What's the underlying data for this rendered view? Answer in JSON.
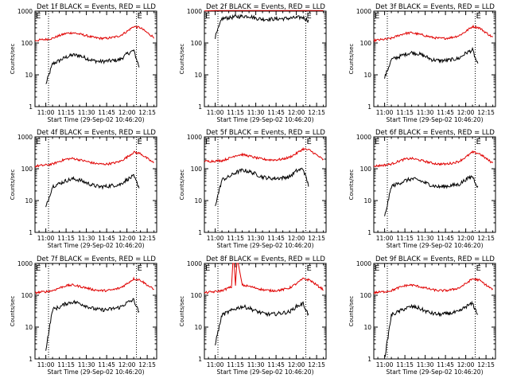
{
  "chart_data": [
    {
      "type": "line",
      "title": "Det 1f BLACK = Events, RED = LLD",
      "ylabel": "Counts/sec",
      "xlabel": "Start Time (29-Sep-02 10:46:20)",
      "x_ticks": [
        "11:00",
        "11:15",
        "11:30",
        "11:45",
        "12:00",
        "12:15"
      ],
      "y_ticks": [
        "1",
        "10",
        "100",
        "1000"
      ],
      "ylim": [
        1,
        1000
      ],
      "y_scale": "log",
      "xlim": [
        "10:52",
        "12:22"
      ],
      "vlines": [
        "11:02",
        "12:07"
      ],
      "marker": "E",
      "series": [
        {
          "name": "Events",
          "color": "#000000",
          "x": [
            "11:00",
            "11:05",
            "11:10",
            "11:15",
            "11:20",
            "11:25",
            "11:30",
            "11:35",
            "11:40",
            "11:45",
            "11:50",
            "11:55",
            "12:00",
            "12:05",
            "12:09"
          ],
          "values": [
            5,
            22,
            28,
            36,
            42,
            40,
            33,
            28,
            26,
            27,
            28,
            30,
            45,
            58,
            18
          ]
        },
        {
          "name": "LLD",
          "color": "#e00000",
          "x": [
            "10:52",
            "11:00",
            "11:05",
            "11:10",
            "11:15",
            "11:20",
            "11:25",
            "11:30",
            "11:35",
            "11:40",
            "11:45",
            "11:50",
            "11:55",
            "12:00",
            "12:05",
            "12:10",
            "12:15",
            "12:20"
          ],
          "values": [
            120,
            130,
            140,
            170,
            200,
            210,
            190,
            170,
            150,
            140,
            140,
            150,
            170,
            230,
            330,
            300,
            210,
            150
          ]
        }
      ]
    },
    {
      "type": "line",
      "title": "Det 2f BLACK = Events, RED = LLD",
      "ylabel": "Counts/sec",
      "xlabel": "Start Time (29-Sep-02 10:46:20)",
      "x_ticks": [
        "11:00",
        "11:15",
        "11:30",
        "11:45",
        "12:00",
        "12:15"
      ],
      "y_ticks": [
        "1",
        "10",
        "100",
        "1000"
      ],
      "ylim": [
        1,
        1000
      ],
      "y_scale": "log",
      "xlim": [
        "10:52",
        "12:22"
      ],
      "vlines": [
        "11:02",
        "12:07"
      ],
      "marker": "E",
      "series": [
        {
          "name": "Events",
          "color": "#000000",
          "x": [
            "11:00",
            "11:05",
            "11:10",
            "11:15",
            "11:20",
            "11:25",
            "11:30",
            "11:35",
            "11:40",
            "11:45",
            "11:50",
            "11:55",
            "12:00",
            "12:05",
            "12:09"
          ],
          "values": [
            150,
            580,
            620,
            660,
            690,
            700,
            600,
            560,
            560,
            570,
            580,
            600,
            620,
            640,
            500
          ]
        },
        {
          "name": "LLD",
          "color": "#e00000",
          "x": [
            "10:52",
            "11:00",
            "11:10",
            "11:20",
            "11:30",
            "11:40",
            "11:50",
            "12:00",
            "12:05",
            "12:10",
            "12:15",
            "12:20"
          ],
          "values": [
            1020,
            1040,
            1060,
            1080,
            1090,
            1080,
            1100,
            1150,
            1250,
            1200,
            1100,
            1050
          ]
        }
      ]
    },
    {
      "type": "line",
      "title": "Det 3f BLACK = Events, RED = LLD",
      "ylabel": "Counts/sec",
      "xlabel": "Start Time (29-Sep-02 10:46:20)",
      "x_ticks": [
        "11:00",
        "11:15",
        "11:30",
        "11:45",
        "12:00",
        "12:15"
      ],
      "y_ticks": [
        "1",
        "10",
        "100",
        "1000"
      ],
      "ylim": [
        1,
        1000
      ],
      "y_scale": "log",
      "xlim": [
        "10:52",
        "12:22"
      ],
      "vlines": [
        "11:02",
        "12:07"
      ],
      "marker": "E",
      "series": [
        {
          "name": "Events",
          "color": "#000000",
          "x": [
            "11:00",
            "11:05",
            "11:10",
            "11:15",
            "11:20",
            "11:25",
            "11:30",
            "11:35",
            "11:40",
            "11:45",
            "11:50",
            "11:55",
            "12:00",
            "12:05",
            "12:09"
          ],
          "values": [
            8,
            30,
            36,
            44,
            50,
            46,
            38,
            30,
            28,
            28,
            30,
            33,
            48,
            60,
            20
          ]
        },
        {
          "name": "LLD",
          "color": "#e00000",
          "x": [
            "10:52",
            "11:00",
            "11:05",
            "11:10",
            "11:15",
            "11:20",
            "11:25",
            "11:30",
            "11:35",
            "11:40",
            "11:45",
            "11:50",
            "11:55",
            "12:00",
            "12:05",
            "12:10",
            "12:15",
            "12:20"
          ],
          "values": [
            120,
            130,
            140,
            170,
            200,
            210,
            190,
            170,
            150,
            140,
            140,
            150,
            170,
            230,
            330,
            300,
            210,
            150
          ]
        }
      ]
    },
    {
      "type": "line",
      "title": "Det 4f BLACK = Events, RED = LLD",
      "ylabel": "Counts/sec",
      "xlabel": "Start Time (29-Sep-02 10:46:20)",
      "x_ticks": [
        "11:00",
        "11:15",
        "11:30",
        "11:45",
        "12:00",
        "12:15"
      ],
      "y_ticks": [
        "1",
        "10",
        "100",
        "1000"
      ],
      "ylim": [
        1,
        1000
      ],
      "y_scale": "log",
      "xlim": [
        "10:52",
        "12:22"
      ],
      "vlines": [
        "11:02",
        "12:07"
      ],
      "marker": "E",
      "series": [
        {
          "name": "Events",
          "color": "#000000",
          "x": [
            "11:00",
            "11:05",
            "11:10",
            "11:15",
            "11:20",
            "11:25",
            "11:30",
            "11:35",
            "11:40",
            "11:45",
            "11:50",
            "11:55",
            "12:00",
            "12:05",
            "12:09"
          ],
          "values": [
            6,
            28,
            34,
            42,
            48,
            44,
            36,
            30,
            27,
            28,
            30,
            32,
            46,
            58,
            26
          ]
        },
        {
          "name": "LLD",
          "color": "#e00000",
          "x": [
            "10:52",
            "11:00",
            "11:05",
            "11:10",
            "11:15",
            "11:20",
            "11:25",
            "11:30",
            "11:35",
            "11:40",
            "11:45",
            "11:50",
            "11:55",
            "12:00",
            "12:05",
            "12:10",
            "12:15",
            "12:20"
          ],
          "values": [
            120,
            130,
            140,
            170,
            200,
            210,
            190,
            170,
            150,
            140,
            140,
            150,
            170,
            230,
            330,
            300,
            210,
            150
          ]
        }
      ]
    },
    {
      "type": "line",
      "title": "Det 5f BLACK = Events, RED = LLD",
      "ylabel": "Counts/sec",
      "xlabel": "Start Time (29-Sep-02 10:46:20)",
      "x_ticks": [
        "11:00",
        "11:15",
        "11:30",
        "11:45",
        "12:00",
        "12:15"
      ],
      "y_ticks": [
        "1",
        "10",
        "100",
        "1000"
      ],
      "ylim": [
        1,
        1000
      ],
      "y_scale": "log",
      "xlim": [
        "10:52",
        "12:22"
      ],
      "vlines": [
        "11:02",
        "12:07"
      ],
      "marker": "E",
      "series": [
        {
          "name": "Events",
          "color": "#000000",
          "x": [
            "11:00",
            "11:05",
            "11:10",
            "11:15",
            "11:20",
            "11:25",
            "11:30",
            "11:35",
            "11:40",
            "11:45",
            "11:50",
            "11:55",
            "12:00",
            "12:05",
            "12:09"
          ],
          "values": [
            7,
            45,
            55,
            75,
            90,
            82,
            68,
            55,
            50,
            50,
            52,
            56,
            85,
            100,
            30
          ]
        },
        {
          "name": "LLD",
          "color": "#e00000",
          "x": [
            "10:52",
            "11:00",
            "11:05",
            "11:10",
            "11:15",
            "11:20",
            "11:25",
            "11:30",
            "11:35",
            "11:40",
            "11:45",
            "11:50",
            "11:55",
            "12:00",
            "12:05",
            "12:10",
            "12:15",
            "12:20"
          ],
          "values": [
            170,
            175,
            180,
            210,
            260,
            280,
            250,
            220,
            200,
            190,
            190,
            200,
            230,
            300,
            420,
            380,
            270,
            190
          ]
        }
      ]
    },
    {
      "type": "line",
      "title": "Det 6f BLACK = Events, RED = LLD",
      "ylabel": "Counts/sec",
      "xlabel": "Start Time (29-Sep-02 10:46:20)",
      "x_ticks": [
        "11:00",
        "11:15",
        "11:30",
        "11:45",
        "12:00",
        "12:15"
      ],
      "y_ticks": [
        "1",
        "10",
        "100",
        "1000"
      ],
      "ylim": [
        1,
        1000
      ],
      "y_scale": "log",
      "xlim": [
        "10:52",
        "12:22"
      ],
      "vlines": [
        "11:02",
        "12:07"
      ],
      "marker": "E",
      "series": [
        {
          "name": "Events",
          "color": "#000000",
          "x": [
            "11:00",
            "11:05",
            "11:10",
            "11:15",
            "11:20",
            "11:25",
            "11:30",
            "11:35",
            "11:40",
            "11:45",
            "11:50",
            "11:55",
            "12:00",
            "12:05",
            "12:09"
          ],
          "values": [
            3,
            28,
            34,
            42,
            48,
            44,
            36,
            30,
            27,
            28,
            30,
            32,
            46,
            58,
            26
          ]
        },
        {
          "name": "LLD",
          "color": "#e00000",
          "x": [
            "10:52",
            "11:00",
            "11:05",
            "11:10",
            "11:15",
            "11:20",
            "11:25",
            "11:30",
            "11:35",
            "11:40",
            "11:45",
            "11:50",
            "11:55",
            "12:00",
            "12:05",
            "12:10",
            "12:15",
            "12:20"
          ],
          "values": [
            120,
            130,
            140,
            170,
            200,
            210,
            190,
            170,
            150,
            140,
            140,
            150,
            170,
            230,
            330,
            300,
            210,
            150
          ]
        }
      ]
    },
    {
      "type": "line",
      "title": "Det 7f BLACK = Events, RED = LLD",
      "ylabel": "Counts/sec",
      "xlabel": "Start Time (29-Sep-02 10:46:20)",
      "x_ticks": [
        "11:00",
        "11:15",
        "11:30",
        "11:45",
        "12:00",
        "12:15"
      ],
      "y_ticks": [
        "1",
        "10",
        "100",
        "1000"
      ],
      "ylim": [
        1,
        1000
      ],
      "y_scale": "log",
      "xlim": [
        "10:52",
        "12:22"
      ],
      "vlines": [
        "11:02",
        "12:07"
      ],
      "marker": "E",
      "series": [
        {
          "name": "Events",
          "color": "#000000",
          "x": [
            "11:00",
            "11:05",
            "11:10",
            "11:15",
            "11:20",
            "11:25",
            "11:30",
            "11:35",
            "11:40",
            "11:45",
            "11:50",
            "11:55",
            "12:00",
            "12:05",
            "12:09"
          ],
          "values": [
            2,
            36,
            42,
            55,
            62,
            56,
            46,
            38,
            35,
            35,
            38,
            42,
            58,
            72,
            28
          ]
        },
        {
          "name": "LLD",
          "color": "#e00000",
          "x": [
            "10:52",
            "11:00",
            "11:05",
            "11:10",
            "11:15",
            "11:20",
            "11:25",
            "11:30",
            "11:35",
            "11:40",
            "11:45",
            "11:50",
            "11:55",
            "12:00",
            "12:05",
            "12:10",
            "12:15",
            "12:20"
          ],
          "values": [
            120,
            130,
            140,
            170,
            200,
            210,
            190,
            170,
            150,
            140,
            140,
            150,
            170,
            230,
            330,
            300,
            210,
            150
          ]
        }
      ]
    },
    {
      "type": "line",
      "title": "Det 8f BLACK = Events, RED = LLD",
      "ylabel": "Counts/sec",
      "xlabel": "Start Time (29-Sep-02 10:46:20)",
      "x_ticks": [
        "11:00",
        "11:15",
        "11:30",
        "11:45",
        "12:00",
        "12:15"
      ],
      "y_ticks": [
        "1",
        "10",
        "100",
        "1000"
      ],
      "ylim": [
        1,
        1000
      ],
      "y_scale": "log",
      "xlim": [
        "10:52",
        "12:22"
      ],
      "vlines": [
        "11:02",
        "12:07"
      ],
      "marker": "E",
      "series": [
        {
          "name": "Events",
          "color": "#000000",
          "x": [
            "11:00",
            "11:05",
            "11:10",
            "11:15",
            "11:20",
            "11:25",
            "11:30",
            "11:35",
            "11:40",
            "11:45",
            "11:50",
            "11:55",
            "12:00",
            "12:05",
            "12:09"
          ],
          "values": [
            3,
            24,
            30,
            38,
            44,
            40,
            32,
            27,
            25,
            26,
            28,
            30,
            44,
            55,
            24
          ]
        },
        {
          "name": "LLD",
          "color": "#e00000",
          "x": [
            "10:52",
            "11:00",
            "11:05",
            "11:10",
            "11:12",
            "11:13",
            "11:14",
            "11:15",
            "11:16",
            "11:17",
            "11:20",
            "11:25",
            "11:30",
            "11:35",
            "11:40",
            "11:45",
            "11:50",
            "11:55",
            "12:00",
            "12:05",
            "12:10",
            "12:15",
            "12:20"
          ],
          "values": [
            120,
            130,
            140,
            170,
            180,
            1000,
            1000,
            200,
            1000,
            1000,
            210,
            190,
            170,
            150,
            140,
            140,
            150,
            170,
            230,
            330,
            300,
            210,
            150
          ]
        }
      ]
    },
    {
      "type": "line",
      "title": "Det 9f BLACK = Events, RED = LLD",
      "ylabel": "Counts/sec",
      "xlabel": "Start Time (29-Sep-02 10:46:20)",
      "x_ticks": [
        "11:00",
        "11:15",
        "11:30",
        "11:45",
        "12:00",
        "12:15"
      ],
      "y_ticks": [
        "1",
        "10",
        "100",
        "1000"
      ],
      "ylim": [
        1,
        1000
      ],
      "y_scale": "log",
      "xlim": [
        "10:52",
        "12:22"
      ],
      "vlines": [
        "11:02",
        "12:07"
      ],
      "marker": "E",
      "series": [
        {
          "name": "Events",
          "color": "#000000",
          "x": [
            "11:00",
            "11:05",
            "11:10",
            "11:15",
            "11:20",
            "11:25",
            "11:30",
            "11:35",
            "11:40",
            "11:45",
            "11:50",
            "11:55",
            "12:00",
            "12:05",
            "12:09"
          ],
          "values": [
            1,
            24,
            30,
            38,
            44,
            40,
            32,
            27,
            25,
            26,
            28,
            30,
            44,
            55,
            24
          ]
        },
        {
          "name": "LLD",
          "color": "#e00000",
          "x": [
            "10:52",
            "11:00",
            "11:05",
            "11:10",
            "11:15",
            "11:20",
            "11:25",
            "11:30",
            "11:35",
            "11:40",
            "11:45",
            "11:50",
            "11:55",
            "12:00",
            "12:05",
            "12:10",
            "12:15",
            "12:20"
          ],
          "values": [
            120,
            130,
            140,
            170,
            200,
            210,
            190,
            170,
            150,
            140,
            140,
            150,
            170,
            230,
            330,
            300,
            210,
            150
          ]
        }
      ]
    }
  ]
}
